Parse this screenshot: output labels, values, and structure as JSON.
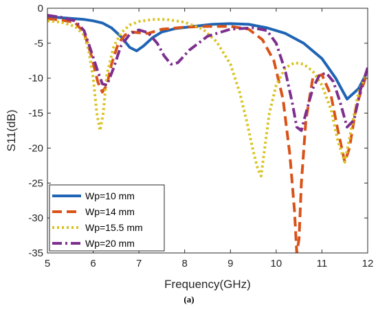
{
  "chart_data": {
    "type": "line",
    "xlabel": "Frequency(GHz)",
    "ylabel": "S11(dB)",
    "xlim": [
      5,
      12
    ],
    "ylim": [
      -35,
      0
    ],
    "xticks": [
      5,
      6,
      7,
      8,
      9,
      10,
      11,
      12
    ],
    "yticks": [
      0,
      -5,
      -10,
      -15,
      -20,
      -25,
      -30,
      -35
    ],
    "grid": false,
    "legend_position": "bottom-left",
    "series": [
      {
        "name": "Wp=10 mm",
        "color": "#1f64b4",
        "style": "solid",
        "x": [
          5.0,
          5.2,
          5.4,
          5.6,
          5.8,
          6.0,
          6.2,
          6.4,
          6.6,
          6.8,
          6.95,
          7.1,
          7.3,
          7.5,
          7.8,
          8.2,
          8.6,
          9.0,
          9.4,
          9.8,
          10.2,
          10.6,
          11.0,
          11.3,
          11.55,
          11.8,
          12.0
        ],
        "y": [
          -1.2,
          -1.3,
          -1.4,
          -1.5,
          -1.6,
          -1.8,
          -2.1,
          -2.8,
          -4.0,
          -5.6,
          -6.1,
          -5.4,
          -4.2,
          -3.4,
          -2.9,
          -2.6,
          -2.3,
          -2.2,
          -2.3,
          -2.8,
          -3.6,
          -5.0,
          -7.2,
          -10.0,
          -13.0,
          -11.5,
          -9.0
        ]
      },
      {
        "name": "Wp=14 mm",
        "color": "#d95319",
        "style": "dashed",
        "x": [
          5.0,
          5.3,
          5.6,
          5.8,
          5.95,
          6.1,
          6.2,
          6.3,
          6.4,
          6.55,
          6.7,
          6.85,
          7.0,
          7.2,
          7.5,
          8.0,
          8.5,
          9.0,
          9.4,
          9.7,
          9.95,
          10.15,
          10.3,
          10.4,
          10.45,
          10.5,
          10.55,
          10.65,
          10.8,
          11.0,
          11.2,
          11.35,
          11.5,
          11.6,
          11.75,
          11.9,
          12.0
        ],
        "y": [
          -1.5,
          -1.7,
          -2.0,
          -3.5,
          -6.5,
          -10.5,
          -12.0,
          -11.0,
          -8.0,
          -5.0,
          -3.8,
          -3.4,
          -3.5,
          -3.6,
          -3.0,
          -2.7,
          -2.6,
          -2.6,
          -3.0,
          -4.5,
          -7.5,
          -13.0,
          -21.0,
          -29.0,
          -35.0,
          -33.0,
          -25.0,
          -16.0,
          -10.0,
          -9.5,
          -12.5,
          -17.5,
          -22.0,
          -20.0,
          -14.0,
          -11.0,
          -9.0
        ]
      },
      {
        "name": "Wp=15.5 mm",
        "color": "#d9c220",
        "style": "dotted",
        "x": [
          5.0,
          5.3,
          5.6,
          5.8,
          5.9,
          6.0,
          6.08,
          6.15,
          6.22,
          6.3,
          6.45,
          6.6,
          6.8,
          7.0,
          7.3,
          7.6,
          8.0,
          8.4,
          8.7,
          9.0,
          9.2,
          9.35,
          9.5,
          9.6,
          9.67,
          9.75,
          9.85,
          10.0,
          10.2,
          10.4,
          10.6,
          10.8,
          11.0,
          11.2,
          11.35,
          11.5,
          11.65,
          11.8,
          12.0
        ],
        "y": [
          -1.8,
          -2.0,
          -2.6,
          -3.8,
          -6.0,
          -10.0,
          -15.0,
          -17.5,
          -15.0,
          -9.5,
          -5.5,
          -3.6,
          -2.4,
          -1.9,
          -1.6,
          -1.6,
          -2.0,
          -3.0,
          -4.8,
          -8.0,
          -12.0,
          -16.0,
          -20.5,
          -23.0,
          -24.0,
          -20.0,
          -15.0,
          -11.0,
          -8.5,
          -7.8,
          -8.0,
          -9.0,
          -11.0,
          -14.5,
          -19.0,
          -22.0,
          -17.0,
          -12.0,
          -9.0
        ]
      },
      {
        "name": "Wp=20 mm",
        "color": "#7e2f8e",
        "style": "dashdot",
        "x": [
          5.0,
          5.3,
          5.6,
          5.8,
          5.95,
          6.1,
          6.2,
          6.3,
          6.45,
          6.6,
          6.8,
          7.0,
          7.2,
          7.4,
          7.55,
          7.7,
          7.85,
          8.1,
          8.5,
          9.0,
          9.5,
          9.8,
          10.0,
          10.2,
          10.35,
          10.45,
          10.55,
          10.65,
          10.8,
          10.95,
          11.1,
          11.25,
          11.4,
          11.55,
          11.7,
          11.85,
          12.0
        ],
        "y": [
          -1.0,
          -1.3,
          -1.8,
          -3.2,
          -6.0,
          -9.0,
          -10.8,
          -11.0,
          -8.5,
          -5.5,
          -3.7,
          -3.1,
          -3.5,
          -5.0,
          -6.8,
          -8.0,
          -7.8,
          -6.0,
          -4.0,
          -3.0,
          -2.8,
          -3.2,
          -5.0,
          -9.0,
          -13.5,
          -17.0,
          -17.5,
          -15.0,
          -11.5,
          -9.5,
          -9.3,
          -10.5,
          -13.5,
          -17.0,
          -16.0,
          -11.5,
          -8.5
        ]
      }
    ]
  },
  "caption": "(a)"
}
